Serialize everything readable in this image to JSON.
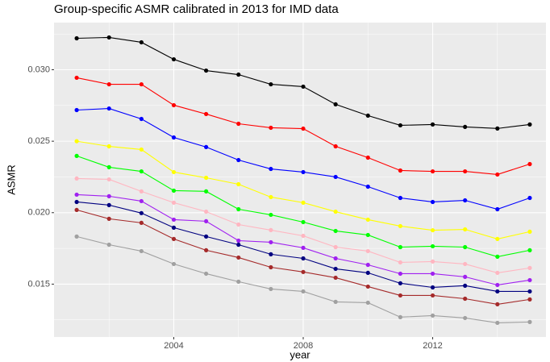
{
  "chart_data": {
    "type": "line",
    "title": "Group-specific ASMR calibrated in 2013 for IMD data",
    "xlabel": "year",
    "ylabel": "ASMR",
    "x": [
      2001,
      2002,
      2003,
      2004,
      2005,
      2006,
      2007,
      2008,
      2009,
      2010,
      2011,
      2012,
      2013,
      2014,
      2015
    ],
    "series": [
      {
        "color": "#000000",
        "values": [
          0.0322,
          0.03226,
          0.03192,
          0.03073,
          0.02994,
          0.02966,
          0.02898,
          0.02882,
          0.02758,
          0.02679,
          0.02611,
          0.02617,
          0.026,
          0.02589,
          0.02617
        ]
      },
      {
        "color": "#ff0000",
        "values": [
          0.02944,
          0.02898,
          0.02898,
          0.02752,
          0.0269,
          0.02622,
          0.02594,
          0.02588,
          0.02464,
          0.02385,
          0.02295,
          0.02289,
          0.02289,
          0.02267,
          0.0234
        ]
      },
      {
        "color": "#0000ff",
        "values": [
          0.02718,
          0.02729,
          0.02656,
          0.02526,
          0.02459,
          0.02368,
          0.02306,
          0.02284,
          0.0225,
          0.02182,
          0.02103,
          0.02075,
          0.02086,
          0.02024,
          0.02103
        ]
      },
      {
        "color": "#ffff00",
        "values": [
          0.025,
          0.02464,
          0.02442,
          0.02284,
          0.02244,
          0.02199,
          0.02109,
          0.0207,
          0.02007,
          0.01951,
          0.01906,
          0.01877,
          0.01883,
          0.01816,
          0.01867
        ]
      },
      {
        "color": "#00ff00",
        "values": [
          0.02397,
          0.02318,
          0.02289,
          0.02154,
          0.02149,
          0.02024,
          0.01985,
          0.01934,
          0.01872,
          0.01844,
          0.01759,
          0.01765,
          0.01759,
          0.01692,
          0.01737
        ]
      },
      {
        "color": "#ffb6c1",
        "values": [
          0.02239,
          0.02233,
          0.02149,
          0.0207,
          0.02007,
          0.01917,
          0.01878,
          0.01838,
          0.01759,
          0.01731,
          0.01652,
          0.01658,
          0.01641,
          0.01579,
          0.01613
        ]
      },
      {
        "color": "#a020f0",
        "values": [
          0.02126,
          0.02115,
          0.02081,
          0.01951,
          0.0194,
          0.01804,
          0.01793,
          0.01754,
          0.0168,
          0.01635,
          0.01573,
          0.01573,
          0.01551,
          0.01494,
          0.01528
        ]
      },
      {
        "color": "#000080",
        "values": [
          0.02075,
          0.02053,
          0.01997,
          0.01895,
          0.01833,
          0.01776,
          0.01709,
          0.0168,
          0.01607,
          0.01579,
          0.01506,
          0.01477,
          0.01489,
          0.01449,
          0.01449
        ]
      },
      {
        "color": "#a52a2a",
        "values": [
          0.02019,
          0.01957,
          0.01929,
          0.01816,
          0.01737,
          0.01686,
          0.01618,
          0.01585,
          0.01545,
          0.01483,
          0.01421,
          0.01421,
          0.01398,
          0.01359,
          0.01393
        ]
      },
      {
        "color": "#a0a0a0",
        "values": [
          0.01833,
          0.01776,
          0.01731,
          0.01641,
          0.01573,
          0.01517,
          0.01466,
          0.01449,
          0.01376,
          0.0137,
          0.01269,
          0.0128,
          0.01263,
          0.01229,
          0.01235
        ]
      }
    ],
    "xlim": [
      2000.3,
      2015.5
    ],
    "ylim": [
      0.0113,
      0.0333
    ],
    "xticks": [
      2004,
      2008,
      2012
    ],
    "yticks": [
      0.015,
      {
        "value": 0.02,
        "label": "0.020"
      },
      0.025,
      {
        "value": 0.03,
        "label": "0.030"
      }
    ],
    "x_minor_ticks": [
      2002,
      2006,
      2010,
      2014
    ],
    "y_minor_ticks": [
      0.0125,
      0.0175,
      0.0225,
      0.0275,
      0.0325
    ],
    "grid": true
  }
}
